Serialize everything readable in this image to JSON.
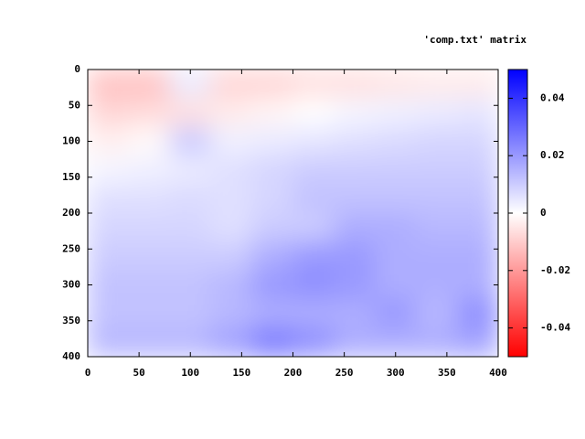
{
  "chart_data": {
    "type": "heatmap",
    "title": "'comp.txt' matrix",
    "x": [
      20,
      60,
      100,
      140,
      180,
      220,
      260,
      300,
      340,
      380
    ],
    "y": [
      20,
      60,
      100,
      140,
      180,
      220,
      260,
      300,
      340,
      380
    ],
    "z": [
      [
        -0.012,
        -0.012,
        0.004,
        -0.008,
        -0.008,
        -0.006,
        -0.006,
        -0.005,
        -0.004,
        -0.004
      ],
      [
        -0.008,
        -0.007,
        -0.006,
        -0.004,
        -0.002,
        0,
        0.002,
        0.003,
        0.004,
        0.005
      ],
      [
        -0.003,
        -0.001,
        0.01,
        0.003,
        0.004,
        0.005,
        0.006,
        0.007,
        0.008,
        0.008
      ],
      [
        0.002,
        0.003,
        0.004,
        0.006,
        0.008,
        0.01,
        0.01,
        0.01,
        0.01,
        0.01
      ],
      [
        0.006,
        0.006,
        0.007,
        0.006,
        0.008,
        0.012,
        0.012,
        0.012,
        0.012,
        0.012
      ],
      [
        0.008,
        0.008,
        0.008,
        0.006,
        0.01,
        0.01,
        0.016,
        0.016,
        0.014,
        0.014
      ],
      [
        0.01,
        0.01,
        0.01,
        0.01,
        0.016,
        0.02,
        0.02,
        0.016,
        0.016,
        0.016
      ],
      [
        0.012,
        0.012,
        0.012,
        0.014,
        0.02,
        0.022,
        0.02,
        0.016,
        0.016,
        0.016
      ],
      [
        0.012,
        0.012,
        0.012,
        0.014,
        0.016,
        0.016,
        0.016,
        0.02,
        0.014,
        0.022
      ],
      [
        0.014,
        0.014,
        0.014,
        0.018,
        0.026,
        0.022,
        0.016,
        0.016,
        0.016,
        0.018
      ]
    ],
    "xlim": [
      0,
      400
    ],
    "xticks": [
      0,
      50,
      100,
      150,
      200,
      250,
      300,
      350,
      400
    ],
    "ylim": [
      400,
      0
    ],
    "yticks": [
      0,
      50,
      100,
      150,
      200,
      250,
      300,
      350,
      400
    ],
    "cblim": [
      -0.05,
      0.05
    ],
    "cbticks": [
      0.04,
      0.02,
      0,
      -0.02,
      -0.04
    ],
    "palette": [
      "#ff0000",
      "#ffffff",
      "#0000ff"
    ]
  }
}
